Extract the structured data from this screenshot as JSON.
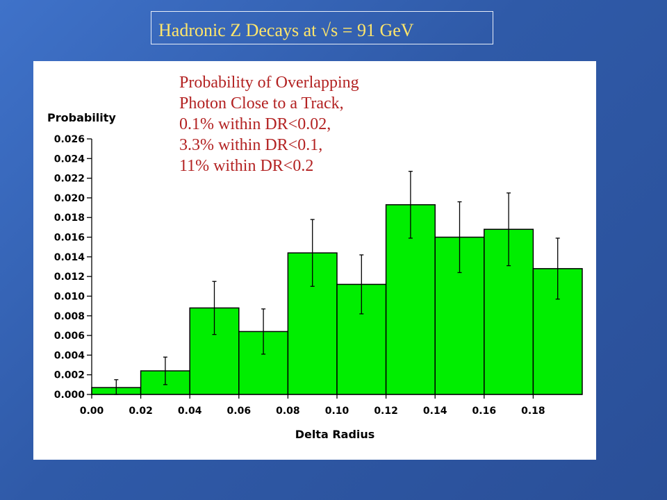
{
  "slide": {
    "title": "Hadronic Z Decays at √s = 91 GeV",
    "annotation_lines": [
      "Probability of Overlapping",
      "Photon Close to a Track,",
      "0.1% within DR<0.02,",
      "3.3% within DR<0.1,",
      "11% within DR<0.2"
    ]
  },
  "colors": {
    "background": "#3465b8",
    "title_text": "#ffe66b",
    "annotation_text": "#b32222",
    "bar_fill": "#00ee00"
  },
  "chart_data": {
    "type": "bar",
    "title": "",
    "xlabel": "Delta Radius",
    "ylabel": "Probability",
    "xlim": [
      0.0,
      0.2
    ],
    "ylim": [
      0.0,
      0.026
    ],
    "x_ticks": [
      "0.00",
      "0.02",
      "0.04",
      "0.06",
      "0.08",
      "0.10",
      "0.12",
      "0.14",
      "0.16",
      "0.18"
    ],
    "y_ticks": [
      "0.000",
      "0.002",
      "0.004",
      "0.006",
      "0.008",
      "0.010",
      "0.012",
      "0.014",
      "0.016",
      "0.018",
      "0.020",
      "0.022",
      "0.024",
      "0.026"
    ],
    "bin_edges": [
      0.0,
      0.02,
      0.04,
      0.06,
      0.08,
      0.1,
      0.12,
      0.14,
      0.16,
      0.18,
      0.2
    ],
    "values": [
      0.0007,
      0.0024,
      0.0088,
      0.0064,
      0.0144,
      0.0112,
      0.0193,
      0.016,
      0.0168,
      0.0128
    ],
    "errors": [
      0.0008,
      0.0014,
      0.0027,
      0.0023,
      0.0034,
      0.003,
      0.0034,
      0.0036,
      0.0037,
      0.0031
    ],
    "error_bars": true,
    "grid": false,
    "legend": "none"
  }
}
